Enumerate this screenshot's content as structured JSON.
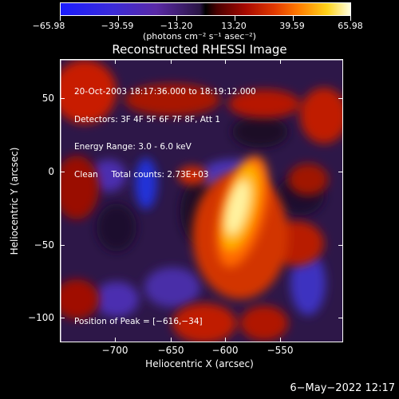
{
  "colorbar": {
    "ticks": [
      "−65.98",
      "−39.59",
      "−13.20",
      "13.20",
      "39.59",
      "65.98"
    ],
    "units": "(photons cm⁻² s⁻¹ asec⁻²)"
  },
  "plot": {
    "title": "Reconstructed RHESSI Image",
    "xlabel": "Heliocentric X (arcsec)",
    "ylabel": "Heliocentric Y (arcsec)",
    "xticks": [
      "−700",
      "−650",
      "−600",
      "−550"
    ],
    "yticks": [
      "50",
      "0",
      "−50",
      "−100"
    ],
    "info_lines": [
      "20-Oct-2003 18:17:36.000 to 18:19:12.000",
      "Detectors: 3F 4F 5F 6F 7F 8F, Att 1",
      "Energy Range: 3.0 - 6.0 keV",
      "Clean     Total counts: 2.73E+03"
    ],
    "peak": "Position of Peak = [−616,−34]"
  },
  "footer": {
    "date": "6−May−2022 12:17"
  },
  "colors": {
    "background": "#000000",
    "low": "#1b1cff",
    "high": "#ffffe0"
  }
}
